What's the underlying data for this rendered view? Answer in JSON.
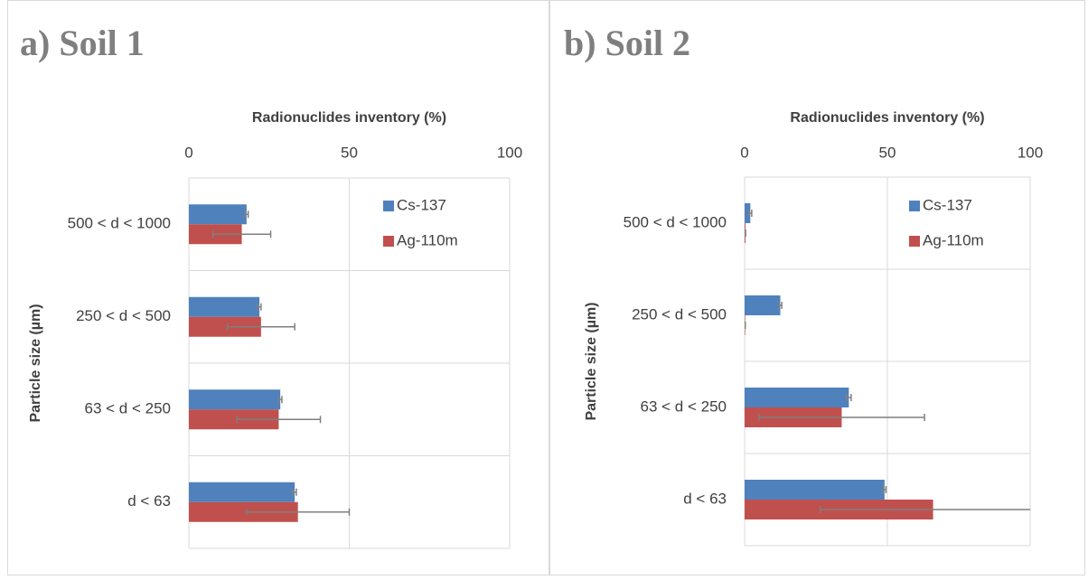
{
  "chart_data": [
    {
      "type": "bar",
      "title": "a) Soil 1",
      "xlabel": "Radionuclides inventory (%)",
      "ylabel": "Particle size (µm)",
      "categories": [
        "500 < d < 1000",
        "250 < d < 500",
        "63 < d < 250",
        "d < 63"
      ],
      "series": [
        {
          "name": "Cs-137",
          "color": "#4f81bd",
          "values": [
            18,
            22,
            28.5,
            33
          ],
          "errors": [
            0.5,
            0.5,
            0.5,
            0.5
          ]
        },
        {
          "name": "Ag-110m",
          "color": "#c0504d",
          "values": [
            16.5,
            22.5,
            28,
            34
          ],
          "errors": [
            9,
            10.5,
            13,
            16
          ]
        }
      ],
      "xlim": [
        0,
        100
      ],
      "xticks": [
        0,
        50,
        100
      ],
      "grid": true
    },
    {
      "type": "bar",
      "title": "b) Soil 2",
      "xlabel": "Radionuclides inventory (%)",
      "ylabel": "Particle size (µm)",
      "categories": [
        "500 < d < 1000",
        "250 < d < 500",
        "63 < d < 250",
        "d < 63"
      ],
      "series": [
        {
          "name": "Cs-137",
          "color": "#4f81bd",
          "values": [
            2,
            12.5,
            36.5,
            49
          ],
          "errors": [
            0.5,
            0.5,
            0.8,
            0.5
          ]
        },
        {
          "name": "Ag-110m",
          "color": "#c0504d",
          "values": [
            0.3,
            0.2,
            34,
            66
          ],
          "errors": [
            0,
            0,
            29,
            39.5
          ]
        }
      ],
      "xlim": [
        0,
        100
      ],
      "xticks": [
        0,
        50,
        100
      ],
      "grid": true
    }
  ]
}
